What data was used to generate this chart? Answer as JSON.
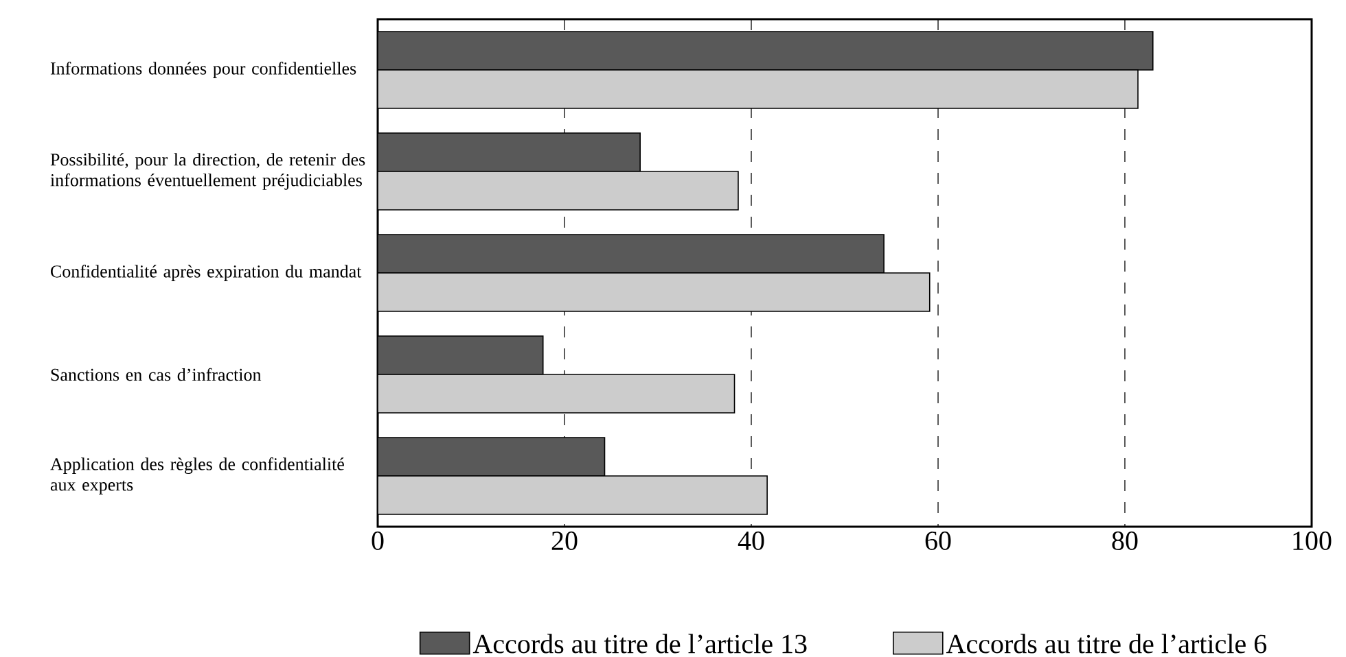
{
  "chart_data": {
    "type": "bar",
    "orientation": "horizontal",
    "categories": [
      "Informations données pour confidentielles",
      "Possibilité, pour la direction, de retenir des informations éventuellement préjudiciables",
      "Confidentialité après expiration du mandat",
      "Sanctions en cas d’infraction",
      "Application des règles de confidentialité aux experts"
    ],
    "series": [
      {
        "name": "Accords au titre de l’article 13",
        "color": "#595959",
        "values": [
          83.0,
          28.1,
          54.2,
          17.7,
          24.3
        ]
      },
      {
        "name": "Accords au titre de l’article 6",
        "color": "#cccccc",
        "values": [
          81.4,
          38.6,
          59.1,
          38.2,
          41.7
        ]
      }
    ],
    "xlim": [
      0,
      100
    ],
    "xticks": [
      0,
      20,
      40,
      60,
      80,
      100
    ],
    "grid": "x",
    "legend": "bottom"
  }
}
